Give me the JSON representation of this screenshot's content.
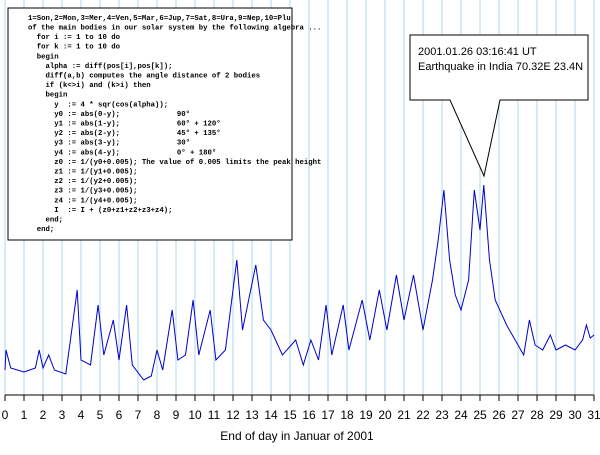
{
  "chart_data": {
    "type": "line",
    "xlabel": "End of day in Januar of 2001",
    "code_lines": [
      "1=Son,2=Mon,3=Mer,4=Ven,5=Mar,6=Jup,7=Sat,8=Ura,9=Nep,10=Plu",
      "of the main bodies in our solar system by the following algebra ...",
      "  for i := 1 to 10 do",
      "  for k := 1 to 10 do",
      "  begin",
      "    alpha := diff(pos[i],pos[k]);",
      "    diff(a,b) computes the angle distance of 2 bodies",
      "    if (k<>i) and (k>i) then",
      "    begin",
      "      y  := 4 * sqr(cos(alpha));",
      "      y0 := abs(0-y);             90°",
      "      y1 := abs(1-y);             60° + 120°",
      "      y2 := abs(2-y);             45° + 135°",
      "      y3 := abs(3-y);             30°",
      "      y4 := abs(4-y);             0° + 180°",
      "      z0 := 1/(y0+0.005); The value of 0.005 limits the peak height",
      "      z1 := 1/(y1+0.005);",
      "      z2 := 1/(y2+0.005);",
      "      z3 := 1/(y3+0.005);",
      "      z4 := 1/(y4+0.005);",
      "      I  := I + (z0+z1+z2+z3+z4);",
      "    end;",
      "  end;"
    ],
    "annotation": [
      "2001.01.26 03:16:41 UT",
      "Earthquake in India 70.32E 23.4N"
    ],
    "x": [
      0,
      0.05,
      0.3,
      1.0,
      1.6,
      1.8,
      2.0,
      2.3,
      2.6,
      3.2,
      3.8,
      4.0,
      4.5,
      4.9,
      5.2,
      5.7,
      6.0,
      6.4,
      6.7,
      7.3,
      7.7,
      8.0,
      8.3,
      8.8,
      9.1,
      9.5,
      9.9,
      10.2,
      10.8,
      11.1,
      11.6,
      12.2,
      12.5,
      13.2,
      13.6,
      14.0,
      14.6,
      15.3,
      15.7,
      16.1,
      16.5,
      16.9,
      17.2,
      17.8,
      18.1,
      18.8,
      19.2,
      19.7,
      20.1,
      20.6,
      21.0,
      21.5,
      22.0,
      22.5,
      22.8,
      23.1,
      23.4,
      23.7,
      24.0,
      24.4,
      24.7,
      25.0,
      25.2,
      25.5,
      25.8,
      26.4,
      27.0,
      27.3,
      27.6,
      27.9,
      28.3,
      28.7,
      29.0,
      29.5,
      30.0,
      30.4,
      30.6,
      30.8,
      31.0
    ],
    "values": [
      25,
      45,
      27,
      23,
      27,
      45,
      27,
      40,
      25,
      21,
      105,
      35,
      30,
      90,
      40,
      75,
      35,
      90,
      30,
      15,
      19,
      45,
      25,
      85,
      35,
      40,
      95,
      40,
      85,
      35,
      45,
      135,
      65,
      130,
      75,
      65,
      40,
      55,
      30,
      55,
      35,
      90,
      40,
      90,
      45,
      95,
      55,
      105,
      65,
      120,
      75,
      120,
      65,
      115,
      155,
      205,
      135,
      100,
      85,
      115,
      205,
      165,
      210,
      135,
      95,
      70,
      50,
      40,
      75,
      50,
      45,
      60,
      45,
      50,
      45,
      55,
      70,
      57,
      60
    ],
    "color": "#0000cc",
    "xlim": [
      0,
      31
    ],
    "xticks": [
      0,
      1,
      2,
      3,
      4,
      5,
      6,
      7,
      8,
      9,
      10,
      11,
      12,
      13,
      14,
      15,
      16,
      17,
      18,
      19,
      20,
      21,
      22,
      23,
      24,
      25,
      26,
      27,
      28,
      29,
      30,
      31
    ],
    "ylim": [
      0,
      395
    ],
    "grid": true,
    "grid_color": "#a8d8ea"
  }
}
